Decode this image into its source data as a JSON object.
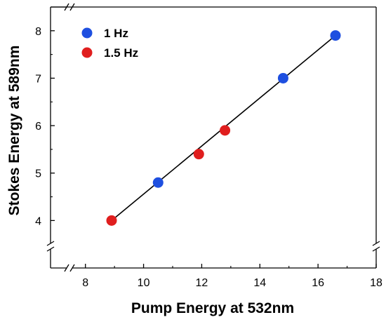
{
  "chart_data": {
    "type": "scatter",
    "xlabel": "Pump Energy at 532nm",
    "ylabel": "Stokes Energy at 589nm",
    "xlim": [
      6.8,
      18
    ],
    "ylim": [
      3.0,
      8.5
    ],
    "x_ticks": [
      8,
      10,
      12,
      14,
      16,
      18
    ],
    "y_ticks": [
      4,
      5,
      6,
      7,
      8
    ],
    "axis_breaks": [
      "x-axis near left end",
      "y-axis near bottom"
    ],
    "legend_position": "top-left",
    "grid": false,
    "series": [
      {
        "name": "1 Hz",
        "color": "#1e4fe0",
        "points": [
          [
            10.5,
            4.8
          ],
          [
            14.8,
            7.0
          ],
          [
            16.6,
            7.9
          ]
        ]
      },
      {
        "name": "1.5 Hz",
        "color": "#e01e1e",
        "points": [
          [
            8.9,
            4.0
          ],
          [
            11.9,
            5.4
          ],
          [
            12.8,
            5.9
          ]
        ]
      }
    ],
    "fit_line": {
      "color": "#000000",
      "from": [
        8.9,
        4.0
      ],
      "to": [
        16.6,
        7.9
      ]
    }
  }
}
